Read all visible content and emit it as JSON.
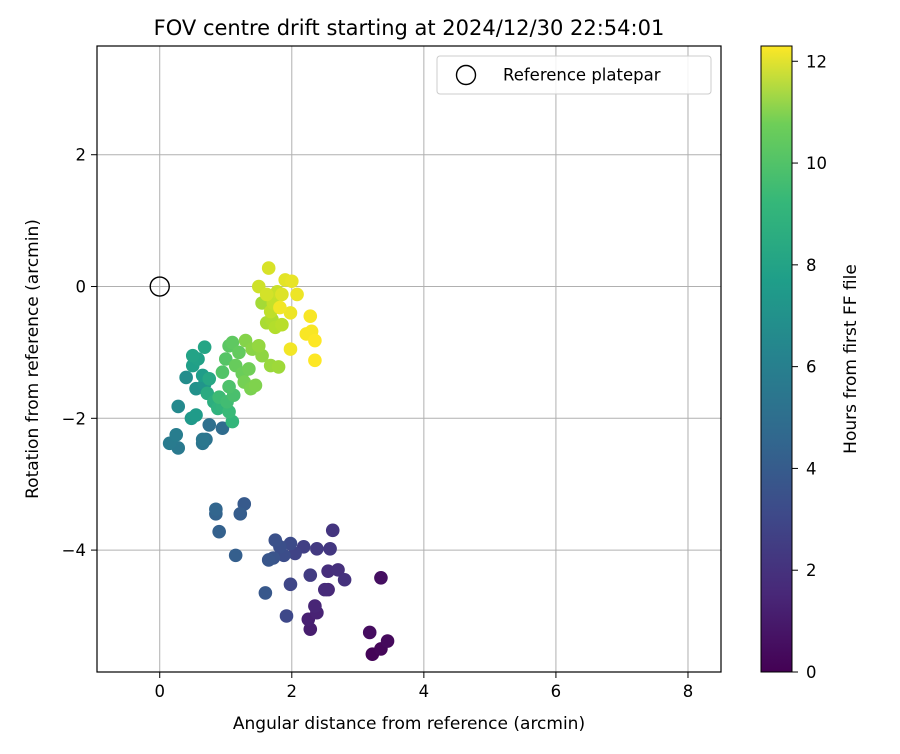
{
  "chart_data": {
    "type": "scatter",
    "title": "FOV centre drift starting at 2024/12/30 22:54:01",
    "xlabel": "Angular distance from reference (arcmin)",
    "ylabel": "Rotation from reference (arcmin)",
    "xlim": [
      -0.95,
      8.5
    ],
    "ylim": [
      -5.85,
      3.65
    ],
    "xticks": [
      0,
      2,
      4,
      6,
      8
    ],
    "yticks": [
      2,
      0,
      -2,
      -4
    ],
    "grid": true,
    "legend": {
      "placement": "top-right",
      "entries": [
        "Reference platepar"
      ]
    },
    "reference_point": {
      "x": 0,
      "y": 0
    },
    "colorbar": {
      "label": "Hours from first FF file",
      "min": 0,
      "max": 12.3,
      "ticks": [
        0,
        2,
        4,
        6,
        8,
        10,
        12
      ],
      "colormap": "viridis"
    },
    "points": [
      {
        "x": 3.22,
        "y": -5.58,
        "c": 0.1
      },
      {
        "x": 3.35,
        "y": -5.5,
        "c": 0.2
      },
      {
        "x": 3.45,
        "y": -5.38,
        "c": 0.3
      },
      {
        "x": 3.18,
        "y": -5.25,
        "c": 0.4
      },
      {
        "x": 3.35,
        "y": -4.42,
        "c": 0.5
      },
      {
        "x": 2.28,
        "y": -5.2,
        "c": 1.0
      },
      {
        "x": 2.25,
        "y": -5.05,
        "c": 1.1
      },
      {
        "x": 2.38,
        "y": -4.95,
        "c": 1.2
      },
      {
        "x": 2.35,
        "y": -4.85,
        "c": 1.3
      },
      {
        "x": 2.55,
        "y": -4.6,
        "c": 1.4
      },
      {
        "x": 2.5,
        "y": -4.6,
        "c": 1.5
      },
      {
        "x": 2.55,
        "y": -4.32,
        "c": 1.6
      },
      {
        "x": 2.7,
        "y": -4.3,
        "c": 1.7
      },
      {
        "x": 2.8,
        "y": -4.45,
        "c": 1.8
      },
      {
        "x": 2.62,
        "y": -3.7,
        "c": 1.9
      },
      {
        "x": 2.58,
        "y": -3.98,
        "c": 2.0
      },
      {
        "x": 2.38,
        "y": -3.98,
        "c": 2.1
      },
      {
        "x": 2.28,
        "y": -4.38,
        "c": 2.2
      },
      {
        "x": 2.18,
        "y": -3.95,
        "c": 2.3
      },
      {
        "x": 2.05,
        "y": -4.05,
        "c": 2.5
      },
      {
        "x": 1.98,
        "y": -4.52,
        "c": 2.6
      },
      {
        "x": 1.92,
        "y": -5.0,
        "c": 2.7
      },
      {
        "x": 1.98,
        "y": -3.9,
        "c": 2.8
      },
      {
        "x": 1.88,
        "y": -4.08,
        "c": 2.9
      },
      {
        "x": 1.82,
        "y": -3.95,
        "c": 3.0
      },
      {
        "x": 1.75,
        "y": -3.85,
        "c": 3.1
      },
      {
        "x": 1.72,
        "y": -4.12,
        "c": 3.2
      },
      {
        "x": 1.65,
        "y": -4.15,
        "c": 3.3
      },
      {
        "x": 1.6,
        "y": -4.65,
        "c": 3.4
      },
      {
        "x": 1.28,
        "y": -3.3,
        "c": 3.5
      },
      {
        "x": 1.22,
        "y": -3.45,
        "c": 3.6
      },
      {
        "x": 1.15,
        "y": -4.08,
        "c": 3.7
      },
      {
        "x": 0.9,
        "y": -3.72,
        "c": 3.8
      },
      {
        "x": 0.85,
        "y": -3.45,
        "c": 3.9
      },
      {
        "x": 0.85,
        "y": -3.38,
        "c": 4.0
      },
      {
        "x": 0.95,
        "y": -2.15,
        "c": 4.3
      },
      {
        "x": 0.75,
        "y": -2.1,
        "c": 4.5
      },
      {
        "x": 0.7,
        "y": -2.32,
        "c": 4.7
      },
      {
        "x": 0.65,
        "y": -2.38,
        "c": 4.8
      },
      {
        "x": 0.65,
        "y": -2.32,
        "c": 4.9
      },
      {
        "x": 0.28,
        "y": -2.45,
        "c": 5.0
      },
      {
        "x": 0.15,
        "y": -2.38,
        "c": 5.1
      },
      {
        "x": 0.25,
        "y": -2.25,
        "c": 5.2
      },
      {
        "x": 0.28,
        "y": -1.82,
        "c": 5.8
      },
      {
        "x": 0.4,
        "y": -1.38,
        "c": 6.0
      },
      {
        "x": 0.55,
        "y": -1.55,
        "c": 6.2
      },
      {
        "x": 0.68,
        "y": -1.48,
        "c": 6.4
      },
      {
        "x": 0.48,
        "y": -2.0,
        "c": 6.6
      },
      {
        "x": 0.55,
        "y": -1.95,
        "c": 6.7
      },
      {
        "x": 0.65,
        "y": -1.35,
        "c": 6.8
      },
      {
        "x": 0.5,
        "y": -1.2,
        "c": 6.9
      },
      {
        "x": 0.58,
        "y": -1.1,
        "c": 7.0
      },
      {
        "x": 0.5,
        "y": -1.05,
        "c": 7.1
      },
      {
        "x": 0.68,
        "y": -0.92,
        "c": 7.2
      },
      {
        "x": 0.75,
        "y": -1.4,
        "c": 7.3
      },
      {
        "x": 0.72,
        "y": -1.62,
        "c": 7.5
      },
      {
        "x": 0.82,
        "y": -1.75,
        "c": 7.7
      },
      {
        "x": 0.88,
        "y": -1.85,
        "c": 7.9
      },
      {
        "x": 0.95,
        "y": -1.82,
        "c": 8.0
      },
      {
        "x": 1.1,
        "y": -2.05,
        "c": 8.1
      },
      {
        "x": 1.05,
        "y": -1.9,
        "c": 8.3
      },
      {
        "x": 0.9,
        "y": -1.68,
        "c": 8.4
      },
      {
        "x": 1.02,
        "y": -1.75,
        "c": 8.5
      },
      {
        "x": 1.12,
        "y": -1.65,
        "c": 8.7
      },
      {
        "x": 1.05,
        "y": -1.52,
        "c": 8.8
      },
      {
        "x": 0.95,
        "y": -1.3,
        "c": 8.9
      },
      {
        "x": 1.0,
        "y": -1.1,
        "c": 9.0
      },
      {
        "x": 1.05,
        "y": -0.9,
        "c": 9.1
      },
      {
        "x": 1.1,
        "y": -0.85,
        "c": 9.2
      },
      {
        "x": 1.2,
        "y": -1.0,
        "c": 9.3
      },
      {
        "x": 1.15,
        "y": -1.2,
        "c": 9.4
      },
      {
        "x": 1.25,
        "y": -1.32,
        "c": 9.5
      },
      {
        "x": 1.35,
        "y": -1.25,
        "c": 9.6
      },
      {
        "x": 1.28,
        "y": -1.45,
        "c": 9.7
      },
      {
        "x": 1.38,
        "y": -1.55,
        "c": 9.8
      },
      {
        "x": 1.45,
        "y": -1.5,
        "c": 9.9
      },
      {
        "x": 1.3,
        "y": -0.82,
        "c": 10.0
      },
      {
        "x": 1.4,
        "y": -0.95,
        "c": 10.1
      },
      {
        "x": 1.55,
        "y": -1.05,
        "c": 10.2
      },
      {
        "x": 1.5,
        "y": -0.9,
        "c": 10.3
      },
      {
        "x": 1.68,
        "y": -1.2,
        "c": 10.4
      },
      {
        "x": 1.8,
        "y": -1.22,
        "c": 10.5
      },
      {
        "x": 1.55,
        "y": -0.25,
        "c": 10.6
      },
      {
        "x": 1.62,
        "y": -0.55,
        "c": 10.7
      },
      {
        "x": 1.7,
        "y": -0.5,
        "c": 10.8
      },
      {
        "x": 1.75,
        "y": -0.62,
        "c": 10.9
      },
      {
        "x": 1.85,
        "y": -0.58,
        "c": 11.0
      },
      {
        "x": 1.68,
        "y": -0.38,
        "c": 11.1
      },
      {
        "x": 1.72,
        "y": -0.25,
        "c": 11.2
      },
      {
        "x": 1.78,
        "y": -0.08,
        "c": 11.3
      },
      {
        "x": 1.5,
        "y": 0.0,
        "c": 11.4
      },
      {
        "x": 1.62,
        "y": -0.12,
        "c": 11.5
      },
      {
        "x": 1.65,
        "y": 0.28,
        "c": 11.6
      },
      {
        "x": 1.85,
        "y": -0.12,
        "c": 11.7
      },
      {
        "x": 1.9,
        "y": 0.1,
        "c": 11.8
      },
      {
        "x": 2.0,
        "y": 0.08,
        "c": 11.9
      },
      {
        "x": 1.98,
        "y": -0.4,
        "c": 12.0
      },
      {
        "x": 2.08,
        "y": -0.12,
        "c": 12.0
      },
      {
        "x": 1.82,
        "y": -0.32,
        "c": 12.1
      },
      {
        "x": 1.98,
        "y": -0.95,
        "c": 12.1
      },
      {
        "x": 2.22,
        "y": -0.72,
        "c": 12.2
      },
      {
        "x": 2.3,
        "y": -0.68,
        "c": 12.2
      },
      {
        "x": 2.28,
        "y": -0.45,
        "c": 12.2
      },
      {
        "x": 2.35,
        "y": -0.82,
        "c": 12.3
      },
      {
        "x": 2.35,
        "y": -1.12,
        "c": 12.3
      }
    ]
  }
}
